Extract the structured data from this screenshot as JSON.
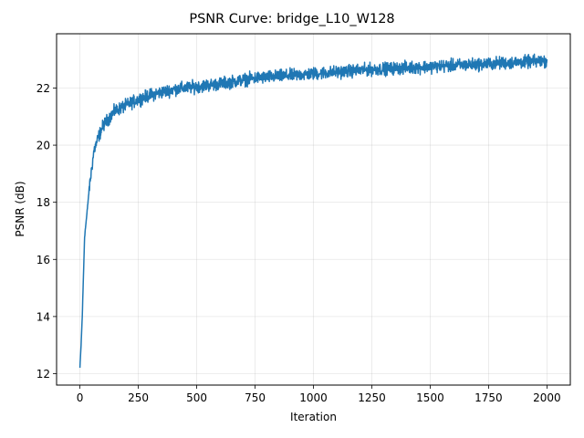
{
  "chart_data": {
    "type": "line",
    "title": "PSNR Curve: bridge_L10_W128",
    "xlabel": "Iteration",
    "ylabel": "PSNR (dB)",
    "xlim": [
      -100,
      2100
    ],
    "ylim": [
      11.6,
      23.9
    ],
    "xticks": [
      0,
      250,
      500,
      750,
      1000,
      1250,
      1500,
      1750,
      2000
    ],
    "yticks": [
      12,
      14,
      16,
      18,
      20,
      22
    ],
    "grid": true,
    "legend": null,
    "series": [
      {
        "name": "PSNR",
        "color": "#1f77b4",
        "x": [
          0,
          5,
          10,
          20,
          30,
          40,
          60,
          80,
          100,
          150,
          200,
          250,
          300,
          400,
          500,
          600,
          750,
          1000,
          1250,
          1500,
          1750,
          2000
        ],
        "y": [
          12.2,
          13.0,
          14.0,
          16.8,
          17.6,
          18.5,
          19.8,
          20.3,
          20.7,
          21.2,
          21.4,
          21.6,
          21.75,
          21.95,
          22.05,
          22.15,
          22.35,
          22.5,
          22.65,
          22.75,
          22.85,
          22.95
        ],
        "noise_amplitude_db": 0.2,
        "num_points": 2001
      }
    ]
  }
}
